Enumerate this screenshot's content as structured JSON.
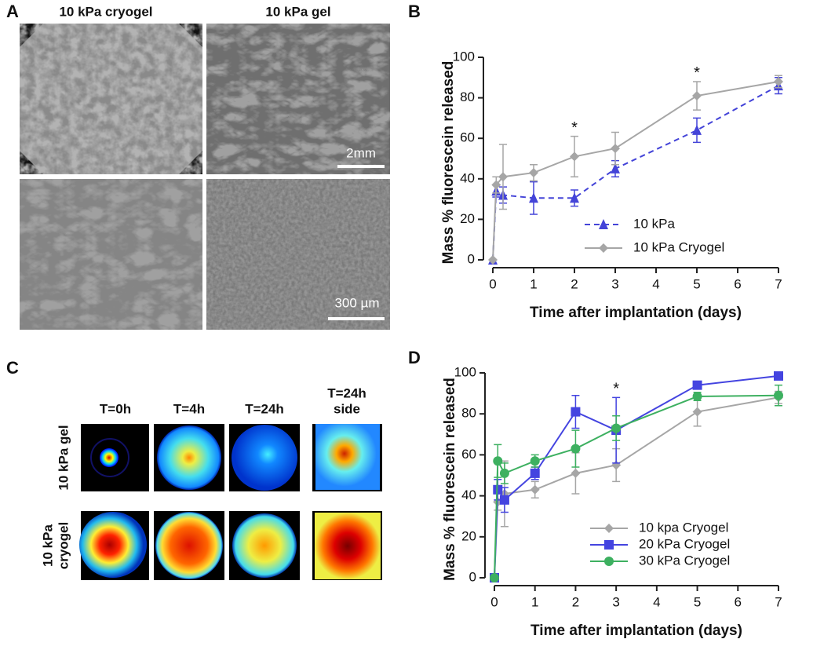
{
  "panel_labels": [
    "A",
    "B",
    "C",
    "D"
  ],
  "panel_a": {
    "column_titles": [
      "10 kPa cryogel",
      "10 kPa gel"
    ],
    "scale_bars": [
      "2mm",
      "300 µm"
    ]
  },
  "panel_c": {
    "column_labels": [
      [
        "T=0h"
      ],
      [
        "T=4h"
      ],
      [
        "T=24h"
      ],
      [
        "T=24h",
        "side"
      ]
    ],
    "row_labels": [
      [
        "10 kPa gel"
      ],
      [
        "10 kPa",
        "cryogel"
      ]
    ]
  },
  "chart_data": [
    {
      "type": "line",
      "xlabel": "Time after implantation (days)",
      "ylabel": "Mass % fluorescein released",
      "x": [
        0,
        0.083,
        0.25,
        1,
        2,
        3,
        5,
        7
      ],
      "series": [
        {
          "name": "10 kPa",
          "color": "#4444d8",
          "marker": "triangle",
          "dashed": true,
          "values": [
            0,
            34,
            32,
            30.5,
            30.5,
            45,
            64,
            86
          ],
          "errors": [
            0,
            3,
            4,
            8,
            4,
            4,
            6,
            4
          ]
        },
        {
          "name": "10 kPa Cryogel",
          "color": "#a6a6a6",
          "marker": "diamond",
          "dashed": false,
          "values": [
            0,
            37,
            41,
            43,
            51,
            55,
            81,
            88
          ],
          "errors": [
            0,
            4,
            16,
            4,
            10,
            8,
            7,
            3
          ]
        }
      ],
      "annotations": [
        {
          "text": "*",
          "x": 2
        },
        {
          "text": "*",
          "x": 5
        }
      ],
      "xlim": [
        0,
        7
      ],
      "xticks": [
        0,
        1,
        2,
        3,
        4,
        5,
        6,
        7
      ],
      "ylim": [
        0,
        100
      ],
      "yticks": [
        0,
        20,
        40,
        60,
        80,
        100
      ],
      "legend": "lower right"
    },
    {
      "type": "line",
      "xlabel": "Time after implantation (days)",
      "ylabel": "Mass % fluorescein released",
      "x": [
        0,
        0.083,
        0.25,
        1,
        2,
        3,
        5,
        7
      ],
      "series": [
        {
          "name": "10 kpa Cryogel",
          "color": "#a6a6a6",
          "marker": "diamond",
          "dashed": false,
          "values": [
            0,
            37,
            41,
            43,
            51,
            55,
            81,
            88
          ],
          "errors": [
            0,
            4,
            16,
            4,
            10,
            8,
            7,
            3
          ]
        },
        {
          "name": "20 kPa Cryogel",
          "color": "#4444e0",
          "marker": "square",
          "dashed": false,
          "values": [
            0,
            43,
            38,
            51,
            81,
            72,
            94,
            98.5
          ],
          "errors": [
            0,
            5,
            6,
            3,
            8,
            16,
            1,
            1
          ]
        },
        {
          "name": "30 kPa Cryogel",
          "color": "#3db060",
          "marker": "circle",
          "dashed": false,
          "values": [
            0,
            57,
            51,
            57,
            63,
            73,
            88.5,
            89
          ],
          "errors": [
            0,
            8,
            5,
            3,
            9,
            6,
            2,
            5
          ]
        }
      ],
      "annotations": [
        {
          "text": "*",
          "x": 3
        }
      ],
      "xlim": [
        0,
        7
      ],
      "xticks": [
        0,
        1,
        2,
        3,
        4,
        5,
        6,
        7
      ],
      "ylim": [
        0,
        100
      ],
      "yticks": [
        0,
        20,
        40,
        60,
        80,
        100
      ],
      "legend": "lower right"
    }
  ]
}
